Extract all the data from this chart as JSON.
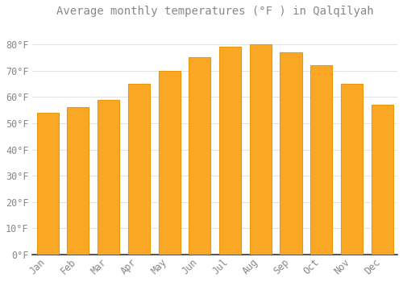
{
  "title": "Average monthly temperatures (°F ) in Qalqīlyah",
  "months": [
    "Jan",
    "Feb",
    "Mar",
    "Apr",
    "May",
    "Jun",
    "Jul",
    "Aug",
    "Sep",
    "Oct",
    "Nov",
    "Dec"
  ],
  "values": [
    54,
    56,
    59,
    65,
    70,
    75,
    79,
    80,
    77,
    72,
    65,
    57
  ],
  "bar_color": "#FBA726",
  "bar_edge_color": "#E8960C",
  "background_color": "#FFFFFF",
  "grid_color": "#DDDDDD",
  "text_color": "#888888",
  "ylim": [
    0,
    88
  ],
  "yticks": [
    0,
    10,
    20,
    30,
    40,
    50,
    60,
    70,
    80
  ],
  "ytick_labels": [
    "0°F",
    "10°F",
    "20°F",
    "30°F",
    "40°F",
    "50°F",
    "60°F",
    "70°F",
    "80°F"
  ],
  "title_fontsize": 10,
  "tick_fontsize": 8.5
}
